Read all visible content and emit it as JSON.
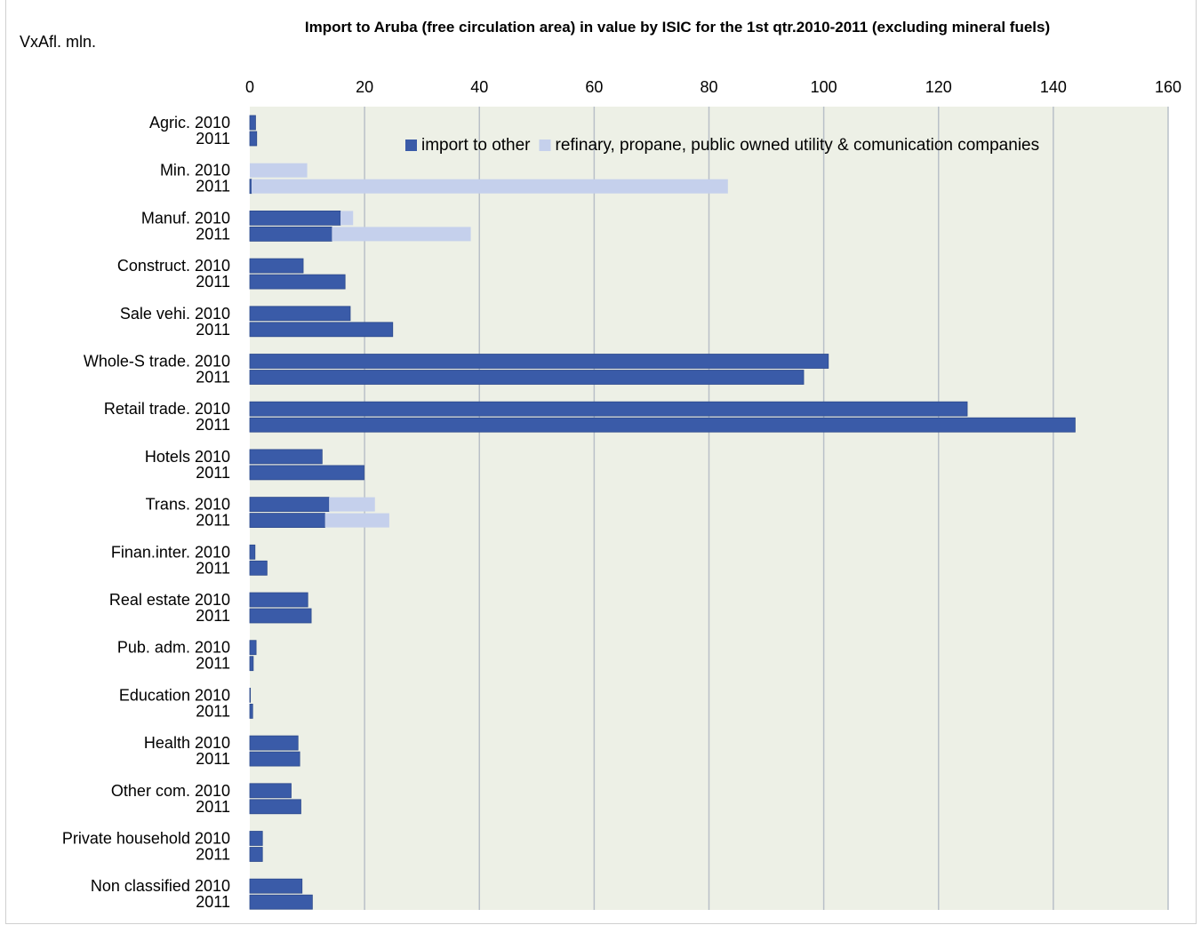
{
  "chart_data": {
    "type": "bar",
    "orientation": "horizontal",
    "stacked": true,
    "title": "Import to Aruba (free circulation area) in value by ISIC for the 1st qtr.2010-2011 (excluding mineral fuels)",
    "ylabel": "VxAfl. mln.",
    "xlim": [
      0,
      160
    ],
    "xticks": [
      0,
      20,
      40,
      60,
      80,
      100,
      120,
      140,
      160
    ],
    "x_axis_position": "top",
    "grid": true,
    "legend_position": "top-right",
    "groups": [
      {
        "label": "Agric.",
        "rows": [
          {
            "year": "2010",
            "a": 1,
            "b": 0
          },
          {
            "year": "2011",
            "a": 1.2,
            "b": 0
          }
        ]
      },
      {
        "label": "Min.",
        "rows": [
          {
            "year": "2010",
            "a": 0,
            "b": 10
          },
          {
            "year": "2011",
            "a": 0.3,
            "b": 83
          }
        ]
      },
      {
        "label": "Manuf.",
        "rows": [
          {
            "year": "2010",
            "a": 15.8,
            "b": 2.2
          },
          {
            "year": "2011",
            "a": 14.3,
            "b": 24.2
          }
        ]
      },
      {
        "label": "Construct.",
        "rows": [
          {
            "year": "2010",
            "a": 9.3,
            "b": 0
          },
          {
            "year": "2011",
            "a": 16.6,
            "b": 0
          }
        ]
      },
      {
        "label": "Sale vehi.",
        "rows": [
          {
            "year": "2010",
            "a": 17.5,
            "b": 0
          },
          {
            "year": "2011",
            "a": 24.9,
            "b": 0
          }
        ]
      },
      {
        "label": "Whole-S trade.",
        "rows": [
          {
            "year": "2010",
            "a": 100.8,
            "b": 0
          },
          {
            "year": "2011",
            "a": 96.5,
            "b": 0
          }
        ]
      },
      {
        "label": "Retail trade.",
        "rows": [
          {
            "year": "2010",
            "a": 125,
            "b": 0
          },
          {
            "year": "2011",
            "a": 143.8,
            "b": 0
          }
        ]
      },
      {
        "label": "Hotels",
        "rows": [
          {
            "year": "2010",
            "a": 12.6,
            "b": 0
          },
          {
            "year": "2011",
            "a": 19.9,
            "b": 0
          }
        ]
      },
      {
        "label": "Trans.",
        "rows": [
          {
            "year": "2010",
            "a": 13.8,
            "b": 8
          },
          {
            "year": "2011",
            "a": 13.1,
            "b": 11.2
          }
        ]
      },
      {
        "label": "Finan.inter.",
        "rows": [
          {
            "year": "2010",
            "a": 0.9,
            "b": 0
          },
          {
            "year": "2011",
            "a": 3,
            "b": 0
          }
        ]
      },
      {
        "label": "Real estate",
        "rows": [
          {
            "year": "2010",
            "a": 10.1,
            "b": 0
          },
          {
            "year": "2011",
            "a": 10.7,
            "b": 0
          }
        ]
      },
      {
        "label": "Pub. adm.",
        "rows": [
          {
            "year": "2010",
            "a": 1.1,
            "b": 0
          },
          {
            "year": "2011",
            "a": 0.6,
            "b": 0
          }
        ]
      },
      {
        "label": "Education",
        "rows": [
          {
            "year": "2010",
            "a": 0.1,
            "b": 0
          },
          {
            "year": "2011",
            "a": 0.5,
            "b": 0
          }
        ]
      },
      {
        "label": "Health",
        "rows": [
          {
            "year": "2010",
            "a": 8.4,
            "b": 0
          },
          {
            "year": "2011",
            "a": 8.7,
            "b": 0
          }
        ]
      },
      {
        "label": "Other com.",
        "rows": [
          {
            "year": "2010",
            "a": 7.2,
            "b": 0
          },
          {
            "year": "2011",
            "a": 8.9,
            "b": 0
          }
        ]
      },
      {
        "label": "Private household",
        "rows": [
          {
            "year": "2010",
            "a": 2.2,
            "b": 0
          },
          {
            "year": "2011",
            "a": 2.2,
            "b": 0
          }
        ]
      },
      {
        "label": "Non classified",
        "rows": [
          {
            "year": "2010",
            "a": 9.1,
            "b": 0
          },
          {
            "year": "2011",
            "a": 10.9,
            "b": 0
          }
        ]
      }
    ],
    "series": [
      {
        "key": "a",
        "name": "import to other",
        "color": "#3a5ba8"
      },
      {
        "key": "b",
        "name": "refinary, propane, public owned utility & comunication companies",
        "color": "#c5d0ec"
      }
    ],
    "colors": {
      "plot_background": "#edf0e6",
      "gridline": "#b9c0c8"
    }
  }
}
